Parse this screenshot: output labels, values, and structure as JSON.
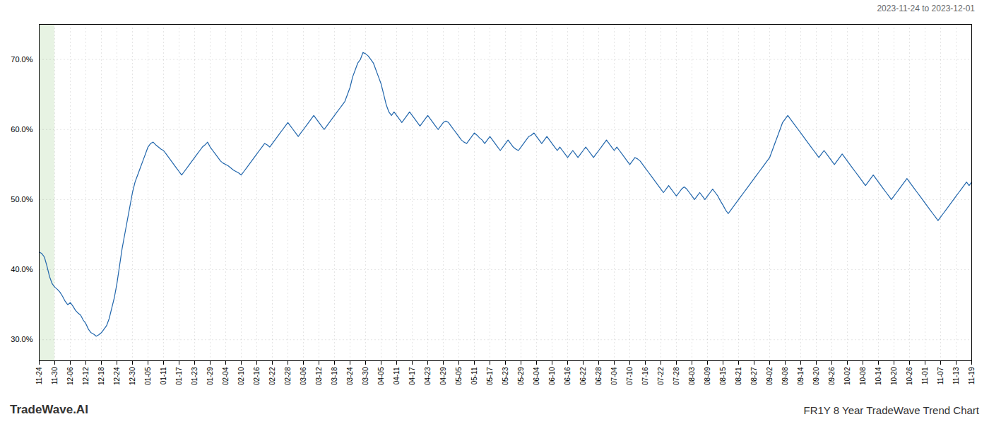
{
  "chart_data": {
    "type": "line",
    "title": "FR1Y 8 Year TradeWave Trend Chart",
    "subtitle": "2023-11-24 to 2023-12-01",
    "annotations": [
      "TradeWave.AI"
    ],
    "color": "#2166ac",
    "grid": true,
    "ylim": [
      27,
      75
    ],
    "yticks": [
      {
        "value": 30,
        "label": "30.0%"
      },
      {
        "value": 40,
        "label": "40.0%"
      },
      {
        "value": 50,
        "label": "50.0%"
      },
      {
        "value": 60,
        "label": "60.0%"
      },
      {
        "value": 70,
        "label": "70.0%"
      }
    ],
    "bands": [
      {
        "from": "11-24",
        "to": "11-30",
        "color": "#d4eacc"
      }
    ],
    "categories": [
      "11-24",
      null,
      null,
      null,
      null,
      null,
      "11-30",
      null,
      null,
      null,
      null,
      null,
      "12-06",
      null,
      null,
      null,
      null,
      null,
      "12-12",
      null,
      null,
      null,
      null,
      null,
      "12-18",
      null,
      null,
      null,
      null,
      null,
      "12-24",
      null,
      null,
      null,
      null,
      null,
      "12-30",
      null,
      null,
      null,
      null,
      null,
      "01-05",
      null,
      null,
      null,
      null,
      null,
      "01-11",
      null,
      null,
      null,
      null,
      null,
      "01-17",
      null,
      null,
      null,
      null,
      null,
      "01-23",
      null,
      null,
      null,
      null,
      null,
      "01-29",
      null,
      null,
      null,
      null,
      null,
      "02-04",
      null,
      null,
      null,
      null,
      null,
      "02-10",
      null,
      null,
      null,
      null,
      null,
      "02-16",
      null,
      null,
      null,
      null,
      null,
      "02-22",
      null,
      null,
      null,
      null,
      null,
      "02-28",
      null,
      null,
      null,
      null,
      null,
      "03-06",
      null,
      null,
      null,
      null,
      null,
      "03-12",
      null,
      null,
      null,
      null,
      null,
      "03-18",
      null,
      null,
      null,
      null,
      null,
      "03-24",
      null,
      null,
      null,
      null,
      null,
      "03-30",
      null,
      null,
      null,
      null,
      null,
      "04-05",
      null,
      null,
      null,
      null,
      null,
      "04-11",
      null,
      null,
      null,
      null,
      null,
      "04-17",
      null,
      null,
      null,
      null,
      null,
      "04-23",
      null,
      null,
      null,
      null,
      null,
      "04-29",
      null,
      null,
      null,
      null,
      null,
      "05-05",
      null,
      null,
      null,
      null,
      null,
      "05-11",
      null,
      null,
      null,
      null,
      null,
      "05-17",
      null,
      null,
      null,
      null,
      null,
      "05-23",
      null,
      null,
      null,
      null,
      null,
      "05-29",
      null,
      null,
      null,
      null,
      null,
      "06-04",
      null,
      null,
      null,
      null,
      null,
      "06-10",
      null,
      null,
      null,
      null,
      null,
      "06-16",
      null,
      null,
      null,
      null,
      null,
      "06-22",
      null,
      null,
      null,
      null,
      null,
      "06-28",
      null,
      null,
      null,
      null,
      null,
      "07-04",
      null,
      null,
      null,
      null,
      null,
      "07-10",
      null,
      null,
      null,
      null,
      null,
      "07-16",
      null,
      null,
      null,
      null,
      null,
      "07-22",
      null,
      null,
      null,
      null,
      null,
      "07-28",
      null,
      null,
      null,
      null,
      null,
      "08-03",
      null,
      null,
      null,
      null,
      null,
      "08-09",
      null,
      null,
      null,
      null,
      null,
      "08-15",
      null,
      null,
      null,
      null,
      null,
      "08-21",
      null,
      null,
      null,
      null,
      null,
      "08-27",
      null,
      null,
      null,
      null,
      null,
      "09-02",
      null,
      null,
      null,
      null,
      null,
      "09-08",
      null,
      null,
      null,
      null,
      null,
      "09-14",
      null,
      null,
      null,
      null,
      null,
      "09-20",
      null,
      null,
      null,
      null,
      null,
      "09-26",
      null,
      null,
      null,
      null,
      null,
      "10-02",
      null,
      null,
      null,
      null,
      null,
      "10-08",
      null,
      null,
      null,
      null,
      null,
      "10-14",
      null,
      null,
      null,
      null,
      null,
      "10-20",
      null,
      null,
      null,
      null,
      null,
      "10-26",
      null,
      null,
      null,
      null,
      null,
      "11-01",
      null,
      null,
      null,
      null,
      null,
      "11-07",
      null,
      null,
      null,
      null,
      null,
      "11-13",
      null,
      null,
      null,
      null,
      null,
      "11-19"
    ],
    "values": [
      42.5,
      42.3,
      41.8,
      40.5,
      39.0,
      38.0,
      37.5,
      37.2,
      36.8,
      36.2,
      35.5,
      35.0,
      35.3,
      34.8,
      34.2,
      33.8,
      33.5,
      32.8,
      32.3,
      31.5,
      31.0,
      30.8,
      30.5,
      30.7,
      31.0,
      31.5,
      32.0,
      33.0,
      34.5,
      36.0,
      38.0,
      40.5,
      43.0,
      45.0,
      47.0,
      49.0,
      51.0,
      52.5,
      53.5,
      54.5,
      55.5,
      56.5,
      57.5,
      58.0,
      58.2,
      57.8,
      57.5,
      57.2,
      57.0,
      56.5,
      56.0,
      55.5,
      55.0,
      54.5,
      54.0,
      53.5,
      54.0,
      54.5,
      55.0,
      55.5,
      56.0,
      56.5,
      57.0,
      57.5,
      57.8,
      58.2,
      57.5,
      57.0,
      56.5,
      56.0,
      55.5,
      55.2,
      55.0,
      54.8,
      54.5,
      54.2,
      54.0,
      53.8,
      53.5,
      54.0,
      54.5,
      55.0,
      55.5,
      56.0,
      56.5,
      57.0,
      57.5,
      58.0,
      57.8,
      57.5,
      58.0,
      58.5,
      59.0,
      59.5,
      60.0,
      60.5,
      61.0,
      60.5,
      60.0,
      59.5,
      59.0,
      59.5,
      60.0,
      60.5,
      61.0,
      61.5,
      62.0,
      61.5,
      61.0,
      60.5,
      60.0,
      60.5,
      61.0,
      61.5,
      62.0,
      62.5,
      63.0,
      63.5,
      64.0,
      65.0,
      66.0,
      67.5,
      68.5,
      69.5,
      70.0,
      71.0,
      70.8,
      70.5,
      70.0,
      69.5,
      68.5,
      67.5,
      66.5,
      65.0,
      63.5,
      62.5,
      62.0,
      62.5,
      62.0,
      61.5,
      61.0,
      61.5,
      62.0,
      62.5,
      62.0,
      61.5,
      61.0,
      60.5,
      61.0,
      61.5,
      62.0,
      61.5,
      61.0,
      60.5,
      60.0,
      60.5,
      61.0,
      61.2,
      61.0,
      60.5,
      60.0,
      59.5,
      59.0,
      58.5,
      58.2,
      58.0,
      58.5,
      59.0,
      59.5,
      59.2,
      58.8,
      58.5,
      58.0,
      58.5,
      59.0,
      58.5,
      58.0,
      57.5,
      57.0,
      57.5,
      58.0,
      58.5,
      58.0,
      57.5,
      57.2,
      57.0,
      57.5,
      58.0,
      58.5,
      59.0,
      59.2,
      59.5,
      59.0,
      58.5,
      58.0,
      58.5,
      59.0,
      58.5,
      58.0,
      57.5,
      57.0,
      57.5,
      57.0,
      56.5,
      56.0,
      56.5,
      57.0,
      56.5,
      56.0,
      56.5,
      57.0,
      57.5,
      57.0,
      56.5,
      56.0,
      56.5,
      57.0,
      57.5,
      58.0,
      58.5,
      58.0,
      57.5,
      57.0,
      57.5,
      57.0,
      56.5,
      56.0,
      55.5,
      55.0,
      55.5,
      56.0,
      55.8,
      55.5,
      55.0,
      54.5,
      54.0,
      53.5,
      53.0,
      52.5,
      52.0,
      51.5,
      51.0,
      51.5,
      52.0,
      51.5,
      51.0,
      50.5,
      51.0,
      51.5,
      51.8,
      51.5,
      51.0,
      50.5,
      50.0,
      50.5,
      51.0,
      50.5,
      50.0,
      50.5,
      51.0,
      51.5,
      51.0,
      50.5,
      49.8,
      49.2,
      48.5,
      48.0,
      48.5,
      49.0,
      49.5,
      50.0,
      50.5,
      51.0,
      51.5,
      52.0,
      52.5,
      53.0,
      53.5,
      54.0,
      54.5,
      55.0,
      55.5,
      56.0,
      57.0,
      58.0,
      59.0,
      60.0,
      61.0,
      61.5,
      62.0,
      61.5,
      61.0,
      60.5,
      60.0,
      59.5,
      59.0,
      58.5,
      58.0,
      57.5,
      57.0,
      56.5,
      56.0,
      56.5,
      57.0,
      56.5,
      56.0,
      55.5,
      55.0,
      55.5,
      56.0,
      56.5,
      56.0,
      55.5,
      55.0,
      54.5,
      54.0,
      53.5,
      53.0,
      52.5,
      52.0,
      52.5,
      53.0,
      53.5,
      53.0,
      52.5,
      52.0,
      51.5,
      51.0,
      50.5,
      50.0,
      50.5,
      51.0,
      51.5,
      52.0,
      52.5,
      53.0,
      52.5,
      52.0,
      51.5,
      51.0,
      50.5,
      50.0,
      49.5,
      49.0,
      48.5,
      48.0,
      47.5,
      47.0,
      47.5,
      48.0,
      48.5,
      49.0,
      49.5,
      50.0,
      50.5,
      51.0,
      51.5,
      52.0,
      52.5,
      52.0,
      52.5
    ]
  }
}
